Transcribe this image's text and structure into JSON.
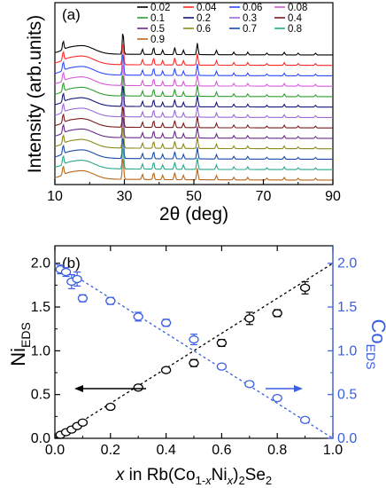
{
  "chart_data": [
    {
      "type": "line",
      "panel_label": "(a)",
      "xlabel": "2θ (deg)",
      "ylabel": "Intensity (arb.units)",
      "xlim": [
        10,
        90
      ],
      "xticks": [
        "10",
        "30",
        "50",
        "70",
        "90"
      ],
      "y_ticks_shown": false,
      "grid": false,
      "legend_placement": "top-right",
      "series": [
        {
          "name": "0.02",
          "color": "#000000"
        },
        {
          "name": "0.04",
          "color": "#ff2a2a"
        },
        {
          "name": "0.06",
          "color": "#2e4bff"
        },
        {
          "name": "0.08",
          "color": "#d65ad8"
        },
        {
          "name": "0.1",
          "color": "#2f9e2f"
        },
        {
          "name": "0.2",
          "color": "#15157a"
        },
        {
          "name": "0.3",
          "color": "#9a6ad8"
        },
        {
          "name": "0.4",
          "color": "#7a1a1a"
        },
        {
          "name": "0.5",
          "color": "#6a2a8a"
        },
        {
          "name": "0.6",
          "color": "#8a8a1a"
        },
        {
          "name": "0.7",
          "color": "#1a4aaa"
        },
        {
          "name": "0.8",
          "color": "#2aa88a"
        },
        {
          "name": "0.9",
          "color": "#b8661a"
        }
      ],
      "peak_positions_2theta": [
        12.4,
        29.6,
        35.2,
        38.4,
        41.0,
        44.5,
        47.0,
        51.0,
        56.5,
        61.5,
        65.5,
        71.0,
        76.0,
        80.0,
        85.0
      ]
    },
    {
      "type": "scatter",
      "panel_label": "(b)",
      "xlabel": "x in Rb(Co1-xNix)2Se2",
      "ylabel": "Ni EDS",
      "ylabel_right": "Co EDS",
      "xlim": [
        0.0,
        1.0
      ],
      "ylim": [
        0.0,
        2.2
      ],
      "xticks": [
        "0.0",
        "0.2",
        "0.4",
        "0.6",
        "0.8",
        "1.0"
      ],
      "yticks": [
        "0.0",
        "0.5",
        "1.0",
        "1.5",
        "2.0"
      ],
      "grid": false,
      "series": [
        {
          "name": "Ni EDS",
          "axis": "left",
          "color": "#000000",
          "x": [
            0.02,
            0.04,
            0.06,
            0.08,
            0.1,
            0.2,
            0.3,
            0.4,
            0.5,
            0.6,
            0.7,
            0.8,
            0.9
          ],
          "y": [
            0.04,
            0.07,
            0.1,
            0.14,
            0.18,
            0.36,
            0.58,
            0.78,
            0.86,
            1.09,
            1.37,
            1.43,
            1.72
          ],
          "yerr": [
            0.02,
            0.02,
            0.02,
            0.02,
            0.02,
            0.02,
            0.03,
            0.03,
            0.04,
            0.04,
            0.07,
            0.04,
            0.07
          ]
        },
        {
          "name": "Co EDS",
          "axis": "right",
          "color": "#3a5fe0",
          "x": [
            0.02,
            0.04,
            0.06,
            0.08,
            0.1,
            0.2,
            0.3,
            0.4,
            0.5,
            0.6,
            0.7,
            0.8,
            0.9
          ],
          "y": [
            1.93,
            1.9,
            1.79,
            1.82,
            1.6,
            1.57,
            1.39,
            1.32,
            1.13,
            0.82,
            0.62,
            0.46,
            0.21
          ],
          "yerr": [
            0.05,
            0.05,
            0.08,
            0.08,
            0.04,
            0.04,
            0.05,
            0.04,
            0.06,
            0.03,
            0.03,
            0.03,
            0.03
          ]
        }
      ],
      "fit_lines": [
        {
          "name": "Ni fit",
          "color": "#000000",
          "x": [
            0.0,
            1.0
          ],
          "y": [
            0.0,
            2.0
          ]
        },
        {
          "name": "Co fit",
          "color": "#3a5fe0",
          "x": [
            0.0,
            1.0
          ],
          "y": [
            2.0,
            0.0
          ]
        }
      ],
      "annotations": [
        "arrow pointing left (Ni, left axis)",
        "arrow pointing right (Co, right axis)"
      ]
    }
  ]
}
